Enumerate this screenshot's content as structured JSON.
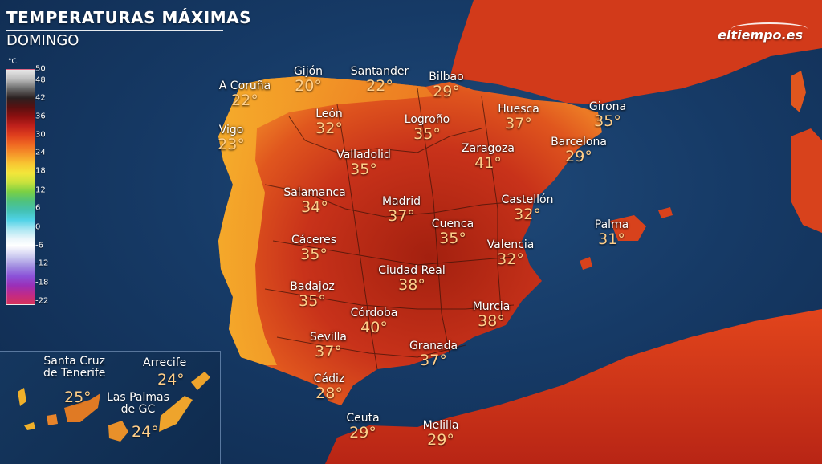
{
  "header": {
    "title": "TEMPERATURAS MÁXIMAS",
    "subtitle": "DOMINGO"
  },
  "brand": {
    "name": "eltiempo.es"
  },
  "legend": {
    "unit": "°C",
    "ticks": [
      "50",
      "48",
      "42",
      "36",
      "30",
      "24",
      "18",
      "12",
      "6",
      "0",
      "-6",
      "-12",
      "-18",
      "-22"
    ]
  },
  "cities": [
    {
      "name": "A Coruña",
      "temp": "22°"
    },
    {
      "name": "Gijón",
      "temp": "20°"
    },
    {
      "name": "Santander",
      "temp": "22°"
    },
    {
      "name": "Bilbao",
      "temp": "29°"
    },
    {
      "name": "Vigo",
      "temp": "23°"
    },
    {
      "name": "León",
      "temp": "32°"
    },
    {
      "name": "Logroño",
      "temp": "35°"
    },
    {
      "name": "Huesca",
      "temp": "37°"
    },
    {
      "name": "Girona",
      "temp": "35°"
    },
    {
      "name": "Valladolid",
      "temp": "35°"
    },
    {
      "name": "Zaragoza",
      "temp": "41°"
    },
    {
      "name": "Barcelona",
      "temp": "29°"
    },
    {
      "name": "Salamanca",
      "temp": "34°"
    },
    {
      "name": "Madrid",
      "temp": "37°"
    },
    {
      "name": "Castellón",
      "temp": "32°"
    },
    {
      "name": "Cuenca",
      "temp": "35°"
    },
    {
      "name": "Palma",
      "temp": "31°"
    },
    {
      "name": "Cáceres",
      "temp": "35°"
    },
    {
      "name": "Valencia",
      "temp": "32°"
    },
    {
      "name": "Ciudad Real",
      "temp": "38°"
    },
    {
      "name": "Badajoz",
      "temp": "35°"
    },
    {
      "name": "Córdoba",
      "temp": "40°"
    },
    {
      "name": "Murcia",
      "temp": "38°"
    },
    {
      "name": "Sevilla",
      "temp": "37°"
    },
    {
      "name": "Granada",
      "temp": "37°"
    },
    {
      "name": "Cádiz",
      "temp": "28°"
    },
    {
      "name": "Ceuta",
      "temp": "29°"
    },
    {
      "name": "Melilla",
      "temp": "29°"
    }
  ],
  "canary": [
    {
      "name": "Santa Cruz\nde Tenerife",
      "temp": "25°"
    },
    {
      "name": "Arrecife",
      "temp": "24°"
    },
    {
      "name": "Las Palmas\nde GC",
      "temp": "24°"
    }
  ]
}
